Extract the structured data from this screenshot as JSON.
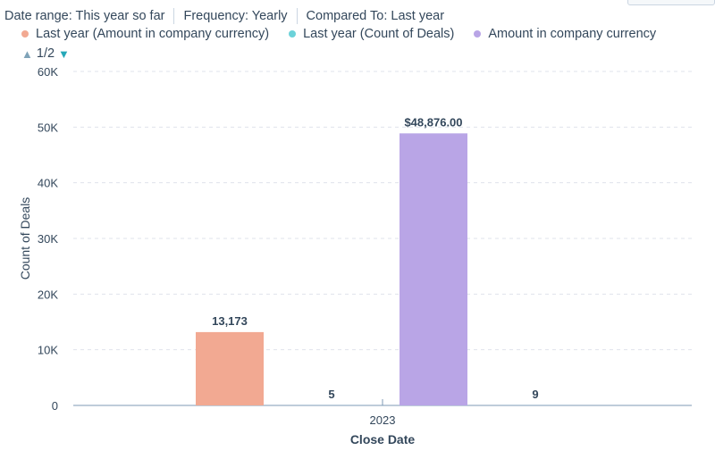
{
  "filters": [
    {
      "label": "Date range: This year so far"
    },
    {
      "label": "Frequency: Yearly"
    },
    {
      "label": "Compared To: Last year"
    }
  ],
  "pager": {
    "text": "1/2"
  },
  "chart_data": {
    "type": "bar",
    "categories": [
      "2023"
    ],
    "series": [
      {
        "name": "Last year (Amount in company currency)",
        "color": "#f2a992",
        "values": [
          13173
        ],
        "data_label": "13,173"
      },
      {
        "name": "Last year (Count of Deals)",
        "color": "#6cd2d9",
        "values": [
          5
        ],
        "data_label": "5"
      },
      {
        "name": "Amount in company currency",
        "color": "#b9a5e6",
        "values": [
          48876
        ],
        "data_label": "$48,876.00"
      },
      {
        "name": "Count of Deals",
        "color": "#6cd2d9",
        "values": [
          9
        ],
        "data_label": "9"
      }
    ],
    "xlabel": "Close Date",
    "ylabel": "Count of Deals",
    "ylim": [
      0,
      60000
    ],
    "yticks": [
      "0",
      "10K",
      "20K",
      "30K",
      "40K",
      "50K",
      "60K"
    ],
    "grid": true,
    "legend_position": "top-left"
  }
}
